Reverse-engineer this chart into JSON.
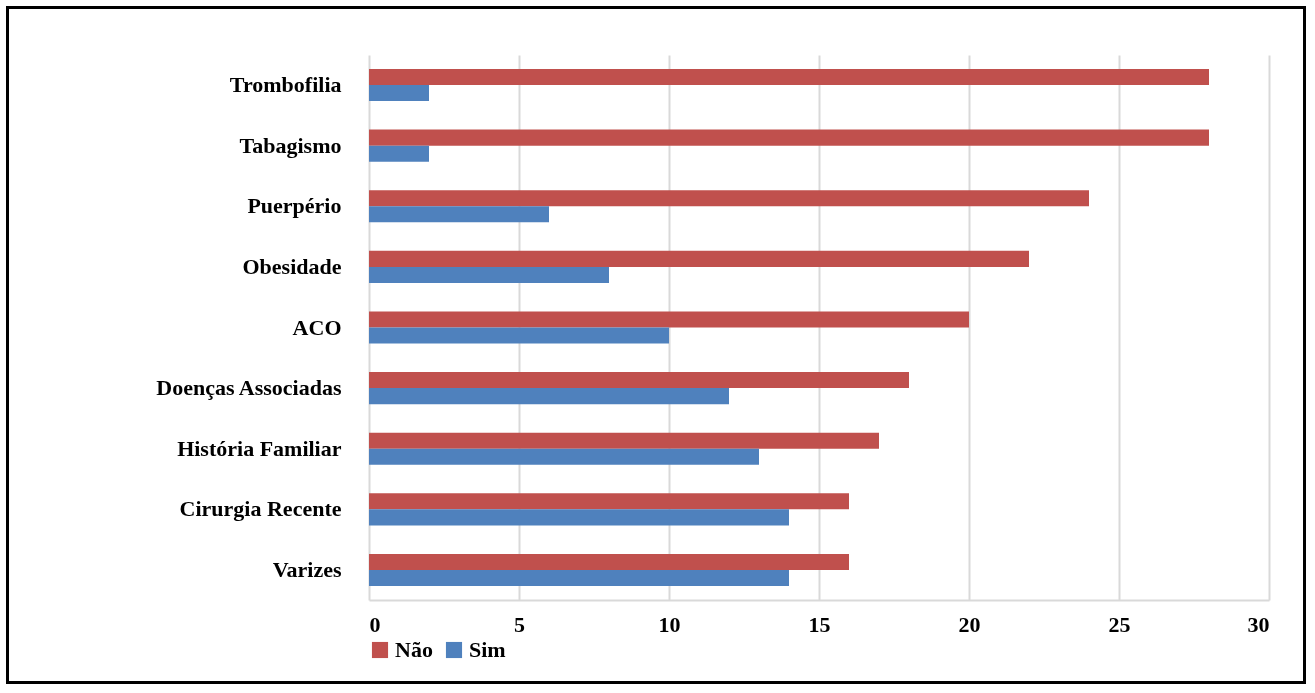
{
  "chart_data": {
    "type": "bar",
    "orientation": "horizontal",
    "categories": [
      "Trombofilia",
      "Tabagismo",
      "Puerpério",
      "Obesidade",
      "ACO",
      "Doenças Associadas",
      "História Familiar",
      "Cirurgia Recente",
      "Varizes"
    ],
    "series": [
      {
        "name": "Não",
        "color": "#c0504d",
        "values": [
          28,
          28,
          24,
          22,
          20,
          18,
          17,
          16,
          16
        ]
      },
      {
        "name": "Sim",
        "color": "#4f81bd",
        "values": [
          2,
          2,
          6,
          8,
          10,
          12,
          13,
          14,
          14
        ]
      }
    ],
    "xlim": [
      0,
      30
    ],
    "xticks": [
      0,
      5,
      10,
      15,
      20,
      25,
      30
    ],
    "grid": "x",
    "legend": "bottom"
  }
}
